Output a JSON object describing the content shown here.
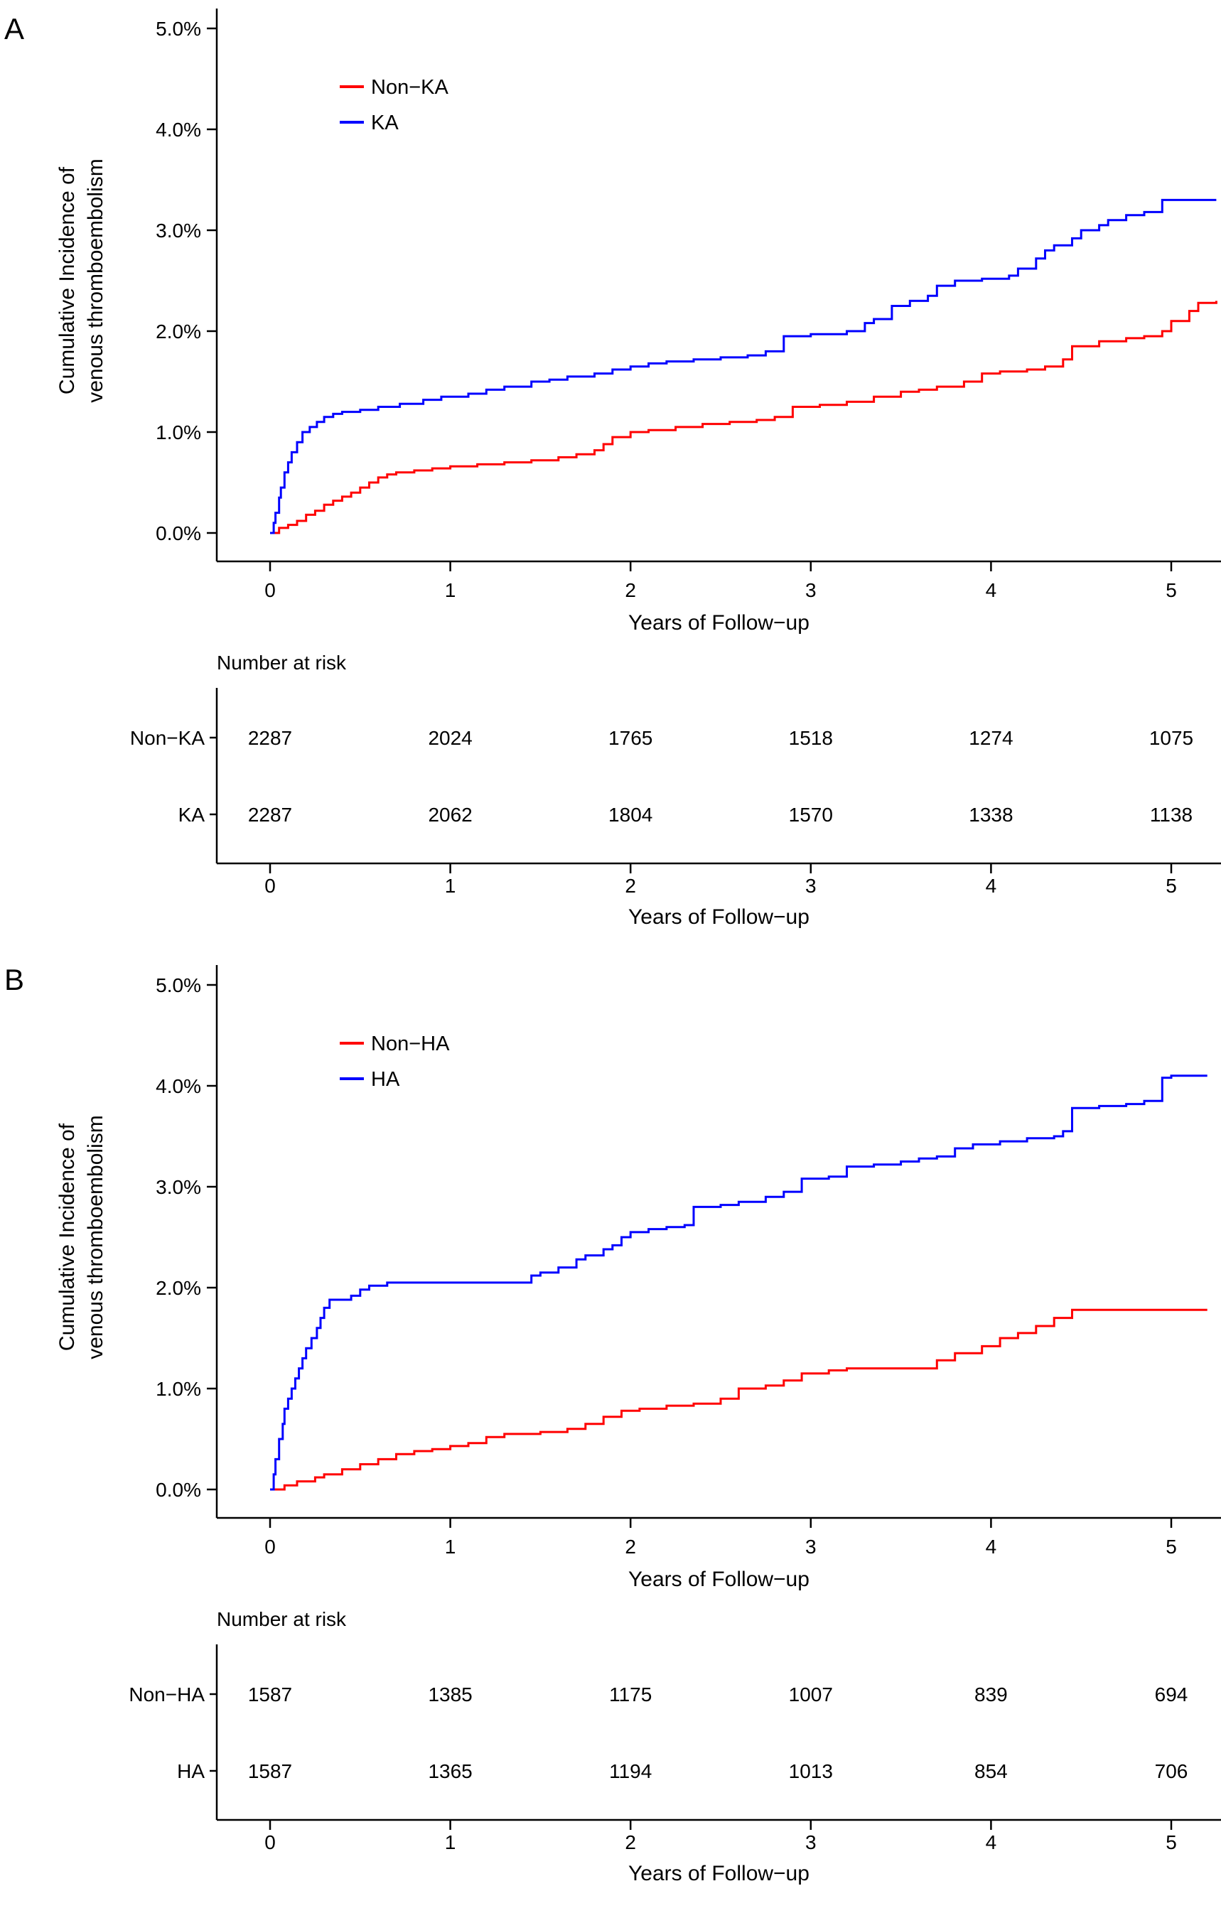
{
  "figure": {
    "background": "#FFFFFF",
    "axis_color": "#000000",
    "red": "#FF0000",
    "blue": "#0000FF"
  },
  "chart_data": [
    {
      "type": "line",
      "subtype": "step",
      "panel_label": "A",
      "xlabel": "Years of Follow−up",
      "ylabel_lines": [
        "Cumulative Incidence of",
        "venous thromboembolism"
      ],
      "xlim": [
        0,
        5.28
      ],
      "ylim": [
        0,
        5
      ],
      "grid": false,
      "legend_position": "top-left-inside",
      "xticks": [
        0,
        1,
        2,
        3,
        4,
        5
      ],
      "ytick_values": [
        0,
        1,
        2,
        3,
        4,
        5
      ],
      "ytick_labels": [
        "0.0%",
        "1.0%",
        "2.0%",
        "3.0%",
        "4.0%",
        "5.0%"
      ],
      "series": [
        {
          "name": "Non−KA",
          "color": "#FF0000",
          "points": [
            [
              0,
              0
            ],
            [
              0.05,
              0.05
            ],
            [
              0.1,
              0.08
            ],
            [
              0.15,
              0.12
            ],
            [
              0.2,
              0.18
            ],
            [
              0.25,
              0.22
            ],
            [
              0.3,
              0.28
            ],
            [
              0.35,
              0.32
            ],
            [
              0.4,
              0.36
            ],
            [
              0.45,
              0.4
            ],
            [
              0.5,
              0.45
            ],
            [
              0.55,
              0.5
            ],
            [
              0.6,
              0.55
            ],
            [
              0.65,
              0.58
            ],
            [
              0.7,
              0.6
            ],
            [
              0.8,
              0.62
            ],
            [
              0.9,
              0.64
            ],
            [
              1.0,
              0.66
            ],
            [
              1.15,
              0.68
            ],
            [
              1.3,
              0.7
            ],
            [
              1.45,
              0.72
            ],
            [
              1.6,
              0.75
            ],
            [
              1.7,
              0.78
            ],
            [
              1.8,
              0.82
            ],
            [
              1.85,
              0.88
            ],
            [
              1.9,
              0.95
            ],
            [
              2.0,
              1.0
            ],
            [
              2.1,
              1.02
            ],
            [
              2.25,
              1.05
            ],
            [
              2.4,
              1.08
            ],
            [
              2.55,
              1.1
            ],
            [
              2.7,
              1.12
            ],
            [
              2.8,
              1.15
            ],
            [
              2.9,
              1.25
            ],
            [
              3.05,
              1.27
            ],
            [
              3.2,
              1.3
            ],
            [
              3.35,
              1.35
            ],
            [
              3.5,
              1.4
            ],
            [
              3.6,
              1.42
            ],
            [
              3.7,
              1.45
            ],
            [
              3.85,
              1.5
            ],
            [
              3.95,
              1.58
            ],
            [
              4.05,
              1.6
            ],
            [
              4.2,
              1.62
            ],
            [
              4.3,
              1.65
            ],
            [
              4.4,
              1.72
            ],
            [
              4.45,
              1.85
            ],
            [
              4.6,
              1.9
            ],
            [
              4.75,
              1.93
            ],
            [
              4.85,
              1.95
            ],
            [
              4.95,
              2.0
            ],
            [
              5.0,
              2.1
            ],
            [
              5.1,
              2.2
            ],
            [
              5.15,
              2.28
            ],
            [
              5.25,
              2.3
            ]
          ]
        },
        {
          "name": "KA",
          "color": "#0000FF",
          "points": [
            [
              0,
              0
            ],
            [
              0.02,
              0.1
            ],
            [
              0.03,
              0.2
            ],
            [
              0.05,
              0.35
            ],
            [
              0.06,
              0.45
            ],
            [
              0.08,
              0.6
            ],
            [
              0.1,
              0.7
            ],
            [
              0.12,
              0.8
            ],
            [
              0.15,
              0.9
            ],
            [
              0.18,
              1.0
            ],
            [
              0.22,
              1.05
            ],
            [
              0.26,
              1.1
            ],
            [
              0.3,
              1.15
            ],
            [
              0.35,
              1.18
            ],
            [
              0.4,
              1.2
            ],
            [
              0.5,
              1.22
            ],
            [
              0.6,
              1.25
            ],
            [
              0.72,
              1.28
            ],
            [
              0.85,
              1.32
            ],
            [
              0.95,
              1.35
            ],
            [
              1.1,
              1.38
            ],
            [
              1.2,
              1.42
            ],
            [
              1.3,
              1.45
            ],
            [
              1.45,
              1.5
            ],
            [
              1.55,
              1.52
            ],
            [
              1.65,
              1.55
            ],
            [
              1.8,
              1.58
            ],
            [
              1.9,
              1.62
            ],
            [
              2.0,
              1.65
            ],
            [
              2.1,
              1.68
            ],
            [
              2.2,
              1.7
            ],
            [
              2.35,
              1.72
            ],
            [
              2.5,
              1.74
            ],
            [
              2.65,
              1.76
            ],
            [
              2.75,
              1.8
            ],
            [
              2.85,
              1.95
            ],
            [
              3.0,
              1.97
            ],
            [
              3.2,
              2.0
            ],
            [
              3.3,
              2.08
            ],
            [
              3.35,
              2.12
            ],
            [
              3.45,
              2.25
            ],
            [
              3.55,
              2.3
            ],
            [
              3.65,
              2.35
            ],
            [
              3.7,
              2.45
            ],
            [
              3.8,
              2.5
            ],
            [
              3.95,
              2.52
            ],
            [
              4.1,
              2.55
            ],
            [
              4.15,
              2.62
            ],
            [
              4.25,
              2.72
            ],
            [
              4.3,
              2.8
            ],
            [
              4.35,
              2.85
            ],
            [
              4.45,
              2.92
            ],
            [
              4.5,
              3.0
            ],
            [
              4.6,
              3.05
            ],
            [
              4.65,
              3.1
            ],
            [
              4.75,
              3.15
            ],
            [
              4.85,
              3.18
            ],
            [
              4.95,
              3.3
            ],
            [
              5.25,
              3.3
            ]
          ]
        }
      ],
      "number_at_risk": {
        "title": "Number at risk",
        "xlabel": "Years of Follow−up",
        "times": [
          0,
          1,
          2,
          3,
          4,
          5
        ],
        "rows": [
          {
            "label": "Non−KA",
            "values": [
              "2287",
              "2024",
              "1765",
              "1518",
              "1274",
              "1075"
            ]
          },
          {
            "label": "KA",
            "values": [
              "2287",
              "2062",
              "1804",
              "1570",
              "1338",
              "1138"
            ]
          }
        ]
      }
    },
    {
      "type": "line",
      "subtype": "step",
      "panel_label": "B",
      "xlabel": "Years of Follow−up",
      "ylabel_lines": [
        "Cumulative Incidence of",
        "venous thromboembolism"
      ],
      "xlim": [
        0,
        5.28
      ],
      "ylim": [
        0,
        5
      ],
      "grid": false,
      "legend_position": "top-left-inside",
      "xticks": [
        0,
        1,
        2,
        3,
        4,
        5
      ],
      "ytick_values": [
        0,
        1,
        2,
        3,
        4,
        5
      ],
      "ytick_labels": [
        "0.0%",
        "1.0%",
        "2.0%",
        "3.0%",
        "4.0%",
        "5.0%"
      ],
      "series": [
        {
          "name": "Non−HA",
          "color": "#FF0000",
          "points": [
            [
              0,
              0
            ],
            [
              0.08,
              0.04
            ],
            [
              0.15,
              0.08
            ],
            [
              0.25,
              0.12
            ],
            [
              0.3,
              0.15
            ],
            [
              0.4,
              0.2
            ],
            [
              0.5,
              0.25
            ],
            [
              0.6,
              0.3
            ],
            [
              0.7,
              0.35
            ],
            [
              0.8,
              0.38
            ],
            [
              0.9,
              0.4
            ],
            [
              1.0,
              0.43
            ],
            [
              1.1,
              0.46
            ],
            [
              1.2,
              0.52
            ],
            [
              1.3,
              0.55
            ],
            [
              1.5,
              0.57
            ],
            [
              1.65,
              0.6
            ],
            [
              1.75,
              0.65
            ],
            [
              1.85,
              0.72
            ],
            [
              1.95,
              0.78
            ],
            [
              2.05,
              0.8
            ],
            [
              2.2,
              0.83
            ],
            [
              2.35,
              0.85
            ],
            [
              2.5,
              0.9
            ],
            [
              2.6,
              1.0
            ],
            [
              2.75,
              1.03
            ],
            [
              2.85,
              1.08
            ],
            [
              2.95,
              1.15
            ],
            [
              3.1,
              1.18
            ],
            [
              3.2,
              1.2
            ],
            [
              3.6,
              1.2
            ],
            [
              3.7,
              1.28
            ],
            [
              3.8,
              1.35
            ],
            [
              3.95,
              1.42
            ],
            [
              4.05,
              1.5
            ],
            [
              4.15,
              1.55
            ],
            [
              4.25,
              1.62
            ],
            [
              4.35,
              1.7
            ],
            [
              4.45,
              1.78
            ],
            [
              5.2,
              1.78
            ]
          ]
        },
        {
          "name": "HA",
          "color": "#0000FF",
          "points": [
            [
              0,
              0
            ],
            [
              0.02,
              0.15
            ],
            [
              0.03,
              0.3
            ],
            [
              0.05,
              0.5
            ],
            [
              0.07,
              0.65
            ],
            [
              0.08,
              0.8
            ],
            [
              0.1,
              0.9
            ],
            [
              0.12,
              1.0
            ],
            [
              0.14,
              1.1
            ],
            [
              0.16,
              1.2
            ],
            [
              0.18,
              1.3
            ],
            [
              0.2,
              1.4
            ],
            [
              0.23,
              1.5
            ],
            [
              0.26,
              1.6
            ],
            [
              0.28,
              1.7
            ],
            [
              0.3,
              1.8
            ],
            [
              0.33,
              1.88
            ],
            [
              0.45,
              1.92
            ],
            [
              0.5,
              1.98
            ],
            [
              0.55,
              2.02
            ],
            [
              0.65,
              2.05
            ],
            [
              1.4,
              2.05
            ],
            [
              1.45,
              2.12
            ],
            [
              1.5,
              2.15
            ],
            [
              1.6,
              2.2
            ],
            [
              1.7,
              2.28
            ],
            [
              1.75,
              2.32
            ],
            [
              1.85,
              2.38
            ],
            [
              1.9,
              2.42
            ],
            [
              1.95,
              2.5
            ],
            [
              2.0,
              2.55
            ],
            [
              2.1,
              2.58
            ],
            [
              2.2,
              2.6
            ],
            [
              2.3,
              2.62
            ],
            [
              2.35,
              2.8
            ],
            [
              2.5,
              2.82
            ],
            [
              2.6,
              2.85
            ],
            [
              2.75,
              2.9
            ],
            [
              2.85,
              2.95
            ],
            [
              2.95,
              3.08
            ],
            [
              3.1,
              3.1
            ],
            [
              3.2,
              3.2
            ],
            [
              3.35,
              3.22
            ],
            [
              3.5,
              3.25
            ],
            [
              3.6,
              3.28
            ],
            [
              3.7,
              3.3
            ],
            [
              3.8,
              3.38
            ],
            [
              3.9,
              3.42
            ],
            [
              4.05,
              3.45
            ],
            [
              4.2,
              3.48
            ],
            [
              4.35,
              3.5
            ],
            [
              4.4,
              3.55
            ],
            [
              4.45,
              3.78
            ],
            [
              4.6,
              3.8
            ],
            [
              4.75,
              3.82
            ],
            [
              4.85,
              3.85
            ],
            [
              4.95,
              4.08
            ],
            [
              5.0,
              4.1
            ],
            [
              5.2,
              4.1
            ]
          ]
        }
      ],
      "number_at_risk": {
        "title": "Number at risk",
        "xlabel": "Years of Follow−up",
        "times": [
          0,
          1,
          2,
          3,
          4,
          5
        ],
        "rows": [
          {
            "label": "Non−HA",
            "values": [
              "1587",
              "1385",
              "1175",
              "1007",
              "839",
              "694"
            ]
          },
          {
            "label": "HA",
            "values": [
              "1587",
              "1365",
              "1194",
              "1013",
              "854",
              "706"
            ]
          }
        ]
      }
    }
  ]
}
